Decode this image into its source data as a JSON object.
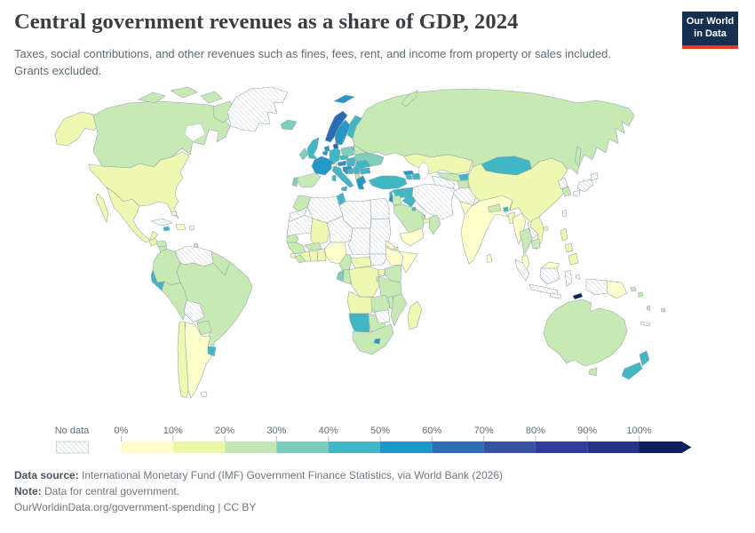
{
  "header": {
    "title": "Central government revenues as a share of GDP, 2024",
    "subtitle": "Taxes, social contributions, and other revenues such as fines, fees, rent, and income from property or sales included. Grants excluded.",
    "logo": {
      "line1": "Our World",
      "line2": "in Data",
      "bg": "#15304f",
      "accent": "#dc3b2e"
    }
  },
  "legend": {
    "no_data_label": "No data",
    "tick_labels": [
      "0%",
      "10%",
      "20%",
      "30%",
      "40%",
      "50%",
      "60%",
      "70%",
      "80%",
      "90%",
      "100%"
    ],
    "bin_colors": [
      "#ffffcc",
      "#eaf7a5",
      "#c3e7b2",
      "#79cbbc",
      "#41b6c4",
      "#1f96c8",
      "#2c6db4",
      "#36539f",
      "#2f3d96",
      "#253384"
    ],
    "arrow_color": "#0c1f60"
  },
  "footer": {
    "source_label": "Data source:",
    "source_text": " International Monetary Fund (IMF) Government Finance Statistics, via World Bank (2026)",
    "note_label": "Note:",
    "note_text": " Data for central government.",
    "link": "OurWorldinData.org/government-spending | CC BY"
  },
  "map": {
    "border_color": "#93a2ab",
    "palette": {
      "b0": "#ffffcc",
      "b1": "#eef8b0",
      "b2": "#c7e9b4",
      "b3": "#7fcdbb",
      "b4": "#41b6c4",
      "b5": "#2398c6",
      "b6": "#2a6cb3",
      "b7": "#36539f",
      "b8": "#2f3d96",
      "b9": "#253384",
      "b10": "#0c1f60"
    }
  },
  "chart_data": {
    "type": "choropleth",
    "title": "Central government revenues as a share of GDP",
    "year": 2024,
    "unit": "% of GDP",
    "legend_bins": [
      "0-10%",
      "10-20%",
      "20-30%",
      "30-40%",
      "40-50%",
      "50-60%",
      "60-70%",
      "70-80%",
      "80-90%",
      "90-100%",
      "100%+"
    ],
    "no_data_key": "nd",
    "regions": {
      "alaska": "b1",
      "canada": "b2",
      "arctic1": "b2",
      "arctic2": "b2",
      "arctic3": "b2",
      "baffin": "b2",
      "greenland": "nd",
      "usa": "b1",
      "mexico": "b1",
      "baja": "b1",
      "guatemala": "b1",
      "honduras": "b2",
      "nicaragua": "b2",
      "costarica": "b0",
      "panama": "b3",
      "cuba": "nd",
      "bahamas": "nd",
      "hispaniola": "b0",
      "jamaica": "b4",
      "puertorico": "nd",
      "trinidad": "b2",
      "colombia": "b2",
      "venezuela": "nd",
      "guyanas": "b2",
      "ecuador": "b4",
      "peru": "b2",
      "brazil": "b2",
      "bolivia": "nd",
      "paraguay": "b2",
      "chile": "b1",
      "argentina": "b0",
      "uruguay": "b4",
      "falkland": "nd",
      "iceland": "b3",
      "svalbard": "b5",
      "norway": "b6",
      "sweden": "b5",
      "finland": "b4",
      "denmark": "b6",
      "estonia": "b4",
      "latvia": "b4",
      "lithuania": "b4",
      "uk": "b4",
      "ireland": "b3",
      "netherlands": "b5",
      "belgium": "b5",
      "germany": "b4",
      "france": "b5",
      "switzerland": "b0",
      "austria": "b5",
      "czechia": "b4",
      "poland": "b3",
      "slovakia": "b4",
      "hungary": "b4",
      "croatia": "b5",
      "bosnia": "b4",
      "serbia": "b4",
      "albania": "b2",
      "macedonia": "b1",
      "greece": "b5",
      "bulgaria": "b4",
      "romania": "b4",
      "moldova": "b2",
      "ukraine": "b3",
      "belarus": "b2",
      "spain": "b2",
      "portugal": "b3",
      "italy": "b4",
      "sicily": "b4",
      "sardinia": "b4",
      "russia": "b2",
      "novaya": "b2",
      "sakhalin": "b2",
      "kazakhstan": "b1",
      "uzbekistan": "b2",
      "turkmenistan": "nd",
      "kyrgyzstan": "b4",
      "tajikistan": "b2",
      "afghanistan": "nd",
      "pakistan": "b0",
      "georgia": "b5",
      "armenia": "b4",
      "azerbaijan": "b4",
      "turkey": "b4",
      "syria": "b4",
      "lebanon": "b4",
      "israel": "b5",
      "jordan": "b2",
      "iraq": "b4",
      "iran": "nd",
      "saudi": "b2",
      "kuwait": "b4",
      "qatar": "b2",
      "uae": "b1",
      "oman": "b2",
      "yemen": "b0",
      "morocco": "b2",
      "wsahara": "nd",
      "algeria": "nd",
      "tunisia": "b4",
      "libya": "nd",
      "egypt": "nd",
      "mauritania": "nd",
      "mali": "b1",
      "senegal": "b2",
      "guinea": "b2",
      "sleone": "b1",
      "liberia": "b2",
      "ivorycoast": "b1",
      "ghana": "b1",
      "togobenin": "b1",
      "burkina": "b2",
      "niger": "nd",
      "nigeria": "b0",
      "chad": "nd",
      "sudan": "nd",
      "ssudan": "nd",
      "eritrea": "b0",
      "djibouti": "b2",
      "ethiopia": "b0",
      "somalia": "b0",
      "cameroon": "b2",
      "car": "b1",
      "gabon": "b3",
      "congo": "b2",
      "drc": "b1",
      "uganda": "b1",
      "kenya": "b2",
      "rwanda": "b2",
      "tanzania": "b2",
      "angola": "b1",
      "zambia": "b2",
      "malawi": "b2",
      "mozambique": "b2",
      "zimbabwe": "nd",
      "namibia": "b4",
      "botswana": "b2",
      "southafrica": "b2",
      "lesotho": "b5",
      "madagascar": "b1",
      "india": "b0",
      "nepal": "b2",
      "bhutan": "b4",
      "bangladesh": "b1",
      "srilanka": "b0",
      "myanmar": "b0",
      "thailand": "b2",
      "laos": "nd",
      "vietnam": "b1",
      "cambodia": "b2",
      "malaysia": "b0",
      "malaysiaborneo": "b0",
      "china": "b1",
      "hainan": "b1",
      "mongolia": "b4",
      "nkorea": "nd",
      "skorea": "b2",
      "japan1": "nd",
      "japan2": "nd",
      "japan3": "nd",
      "taiwan": "nd",
      "luzon": "b1",
      "visayas": "b1",
      "mindanao": "b1",
      "sumatra": "nd",
      "java": "nd",
      "kalimantan": "nd",
      "sulawesi": "nd",
      "lessersunda": "nd",
      "moluccas": "nd",
      "westpapua": "nd",
      "png": "b0",
      "timor": "b10",
      "solomon1": "b2",
      "solomon2": "b2",
      "vanuatu": "b2",
      "fiji": "b2",
      "newcaledonia": "nd",
      "australia": "b2",
      "tasmania": "b2",
      "nznorth": "b4",
      "nzsouth": "b4"
    }
  }
}
